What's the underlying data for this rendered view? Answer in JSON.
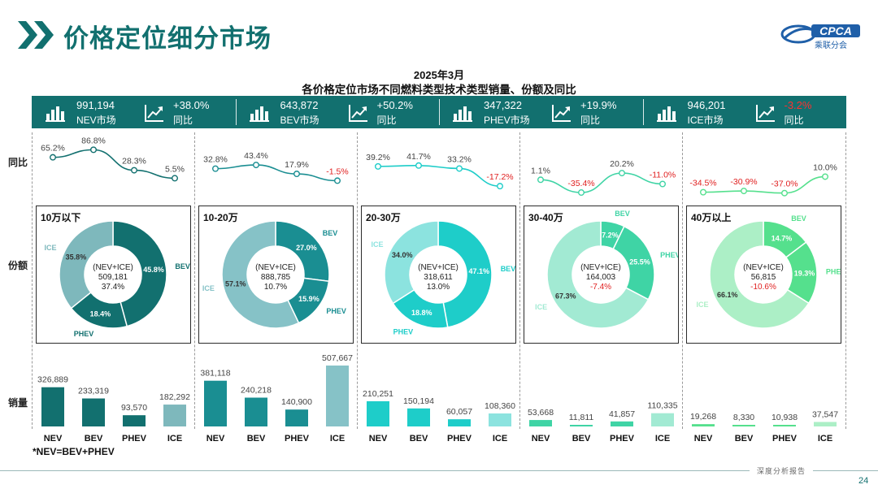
{
  "page": {
    "title": "价格定位细分市场",
    "logo_text": "CPCA",
    "logo_sub": "乘联分会",
    "footer_tag": "深度分析报告",
    "page_number": "24",
    "footnote": "*NEV=BEV+PHEV"
  },
  "chart_title": {
    "line1": "2025年3月",
    "line2": "各价格定位市场不同燃料类型技术类型销量、份额及同比"
  },
  "summary": [
    {
      "value": "991,194",
      "label": "NEV市场",
      "yoy": "+38.0%",
      "yoy_label": "同比",
      "yoy_color": "#ffffff"
    },
    {
      "value": "643,872",
      "label": "BEV市场",
      "yoy": "+50.2%",
      "yoy_label": "同比",
      "yoy_color": "#ffffff"
    },
    {
      "value": "347,322",
      "label": "PHEV市场",
      "yoy": "+19.9%",
      "yoy_label": "同比",
      "yoy_color": "#ffffff"
    },
    {
      "value": "946,201",
      "label": "ICE市场",
      "yoy": "-3.2%",
      "yoy_label": "同比",
      "yoy_color": "#ff3030"
    }
  ],
  "row_labels": {
    "yoy": "同比",
    "share": "份额",
    "sales": "销量"
  },
  "chart_data": {
    "type": "bar",
    "categories": [
      "NEV",
      "BEV",
      "PHEV",
      "ICE"
    ],
    "groups": [
      {
        "name": "10万以下",
        "color": "#12706f",
        "ice_color": "#7eb8bc",
        "yoy": [
          65.2,
          86.8,
          28.3,
          5.5
        ],
        "yoy_labels": [
          "65.2%",
          "86.8%",
          "28.3%",
          "5.5%"
        ],
        "sales": [
          326889,
          233319,
          93570,
          182292
        ],
        "sales_labels": [
          "326,889",
          "233,319",
          "93,570",
          "182,292"
        ],
        "share": {
          "BEV": 45.8,
          "PHEV": 18.4,
          "ICE": 35.8
        },
        "share_labels": {
          "BEV": "45.8%",
          "PHEV": "18.4%",
          "ICE": "35.8%"
        },
        "center": {
          "line1": "(NEV+ICE)",
          "line2": "509,181",
          "line3": "37.4%",
          "line3_color": "#222222"
        }
      },
      {
        "name": "10-20万",
        "color": "#1a8e92",
        "ice_color": "#86c2c7",
        "yoy": [
          32.8,
          43.4,
          17.9,
          -1.5
        ],
        "yoy_labels": [
          "32.8%",
          "43.4%",
          "17.9%",
          "-1.5%"
        ],
        "sales": [
          381118,
          240218,
          140900,
          507667
        ],
        "sales_labels": [
          "381,118",
          "240,218",
          "140,900",
          "507,667"
        ],
        "share": {
          "BEV": 27.0,
          "PHEV": 15.9,
          "ICE": 57.1
        },
        "share_labels": {
          "BEV": "27.0%",
          "PHEV": "15.9%",
          "ICE": "57.1%"
        },
        "center": {
          "line1": "(NEV+ICE)",
          "line2": "888,785",
          "line3": "10.7%",
          "line3_color": "#222222"
        }
      },
      {
        "name": "20-30万",
        "color": "#1ecdc9",
        "ice_color": "#8ce3df",
        "yoy": [
          39.2,
          41.7,
          33.2,
          -17.2
        ],
        "yoy_labels": [
          "39.2%",
          "41.7%",
          "33.2%",
          "-17.2%"
        ],
        "sales": [
          210251,
          150194,
          60057,
          108360
        ],
        "sales_labels": [
          "210,251",
          "150,194",
          "60,057",
          "108,360"
        ],
        "share": {
          "BEV": 47.1,
          "PHEV": 18.8,
          "ICE": 34.0
        },
        "share_labels": {
          "BEV": "47.1%",
          "PHEV": "18.8%",
          "ICE": "34.0%"
        },
        "center": {
          "line1": "(NEV+ICE)",
          "line2": "318,611",
          "line3": "13.0%",
          "line3_color": "#222222"
        }
      },
      {
        "name": "30-40万",
        "color": "#3fd4a5",
        "ice_color": "#a2ead3",
        "yoy": [
          1.1,
          -35.4,
          20.2,
          -11.0
        ],
        "yoy_labels": [
          "1.1%",
          "-35.4%",
          "20.2%",
          "-11.0%"
        ],
        "sales": [
          53668,
          11811,
          41857,
          110335
        ],
        "sales_labels": [
          "53,668",
          "11,811",
          "41,857",
          "110,335"
        ],
        "share": {
          "BEV": 7.2,
          "PHEV": 25.5,
          "ICE": 67.3
        },
        "share_labels": {
          "BEV": "7.2%",
          "PHEV": "25.5%",
          "ICE": "67.3%"
        },
        "center": {
          "line1": "(NEV+ICE)",
          "line2": "164,003",
          "line3": "-7.4%",
          "line3_color": "#e02020"
        }
      },
      {
        "name": "40万以上",
        "color": "#55e08d",
        "ice_color": "#acefc6",
        "yoy": [
          -34.5,
          -30.9,
          -37.0,
          10.0
        ],
        "yoy_labels": [
          "-34.5%",
          "-30.9%",
          "-37.0%",
          "10.0%"
        ],
        "sales": [
          19268,
          8330,
          10938,
          37547
        ],
        "sales_labels": [
          "19,268",
          "8,330",
          "10,938",
          "37,547"
        ],
        "share": {
          "BEV": 14.7,
          "PHEV": 19.3,
          "ICE": 66.1
        },
        "share_labels": {
          "BEV": "14.7%",
          "PHEV": "19.3%",
          "ICE": "66.1%"
        },
        "center": {
          "line1": "(NEV+ICE)",
          "line2": "56,815",
          "line3": "-10.6%",
          "line3_color": "#e02020"
        }
      }
    ],
    "sales_max": 507667
  }
}
